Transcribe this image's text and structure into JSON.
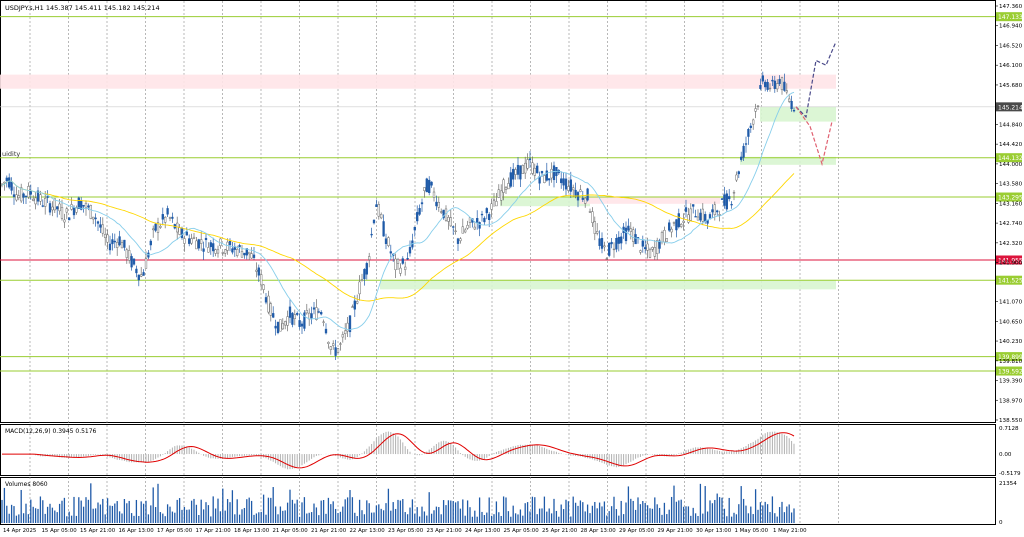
{
  "window": {
    "symbol_title": "USDJPY.s,H1",
    "ohlc_text": "145.387 145.411 145.182 145.214",
    "liquidity_label": "uidity"
  },
  "price_axis": {
    "min": 138.55,
    "max": 147.36,
    "ticks": [
      "147.360",
      "146.940",
      "146.520",
      "146.100",
      "145.680",
      "144.840",
      "144.420",
      "144.000",
      "143.580",
      "143.160",
      "142.740",
      "142.320",
      "141.900",
      "141.070",
      "140.650",
      "140.230",
      "139.810",
      "139.390",
      "138.970",
      "138.550"
    ]
  },
  "time_axis": {
    "labels": [
      "14 Apr 2025",
      "15 Apr 05:00",
      "15 Apr 21:00",
      "16 Apr 13:00",
      "17 Apr 05:00",
      "17 Apr 21:00",
      "18 Apr 13:00",
      "21 Apr 05:00",
      "21 Apr 21:00",
      "22 Apr 13:00",
      "23 Apr 05:00",
      "23 Apr 21:00",
      "24 Apr 13:00",
      "25 Apr 05:00",
      "25 Apr 21:00",
      "28 Apr 13:00",
      "29 Apr 05:00",
      "29 Apr 21:00",
      "30 Apr 13:00",
      "1 May 05:00",
      "1 May 21:00"
    ]
  },
  "levels": [
    {
      "price": 147.133,
      "label": "147.133",
      "color": "#9acd32"
    },
    {
      "price": 145.214,
      "label": "145.214",
      "color": "#4a4a4a",
      "current": true
    },
    {
      "price": 144.132,
      "label": "144.132",
      "color": "#9acd32"
    },
    {
      "price": 143.295,
      "label": "143.295",
      "color": "#9acd32"
    },
    {
      "price": 141.955,
      "label": "141.955",
      "color": "#dc143c"
    },
    {
      "price": 141.525,
      "label": "141.525",
      "color": "#9acd32"
    },
    {
      "price": 139.899,
      "label": "139.899",
      "color": "#9acd32"
    },
    {
      "price": 139.592,
      "label": "139.592",
      "color": "#9acd32"
    }
  ],
  "zones": [
    {
      "type": "supply",
      "from_price": 145.9,
      "to_price": 145.6,
      "color": "#ffe4e8"
    },
    {
      "type": "demand",
      "from_price": 145.214,
      "to_price": 144.9,
      "color": "#d8f5d0"
    },
    {
      "type": "demand",
      "from_price": 144.15,
      "to_price": 143.98,
      "color": "#d8f5d0"
    },
    {
      "type": "demand",
      "from_price": 143.3,
      "to_price": 143.1,
      "color": "#d8f5d0"
    },
    {
      "type": "demand",
      "from_price": 141.53,
      "to_price": 141.33,
      "color": "#d8f5d0"
    },
    {
      "type": "supply",
      "from_price": 143.3,
      "to_price": 143.15,
      "color": "#ffe4e8"
    }
  ],
  "macd": {
    "label": "MACD(12,26,9) 0.3945 0.5176",
    "ticks": [
      "0.7128",
      "0.00",
      "-0.5179"
    ],
    "min": -0.5179,
    "max": 0.7128
  },
  "volumes": {
    "label": "Volumes 8060",
    "ticks": [
      "21354",
      "0"
    ],
    "max": 21354
  },
  "colors": {
    "bull": "#1e5aa8",
    "bear": "#6b6b6b",
    "ma_fast": "#87ceeb",
    "ma_slow": "#ffd700",
    "macd_signal": "#e00000",
    "macd_hist": "#b0b0b0",
    "volume": "#1e5aa8",
    "grid": "#8a8a8a",
    "projection_up": "#4a4a8a",
    "projection_down": "#e06070"
  },
  "chart_data": {
    "type": "candlestick",
    "symbol": "USDJPY.s",
    "timeframe": "H1",
    "last_price": 145.214,
    "close_path": [
      [
        0,
        143.5
      ],
      [
        8,
        143.7
      ],
      [
        18,
        143.3
      ],
      [
        30,
        143.4
      ],
      [
        42,
        143.2
      ],
      [
        55,
        143.1
      ],
      [
        66,
        142.9
      ],
      [
        80,
        143.2
      ],
      [
        95,
        142.9
      ],
      [
        108,
        142.3
      ],
      [
        120,
        142.4
      ],
      [
        132,
        141.9
      ],
      [
        142,
        141.6
      ],
      [
        155,
        142.6
      ],
      [
        168,
        142.9
      ],
      [
        180,
        142.5
      ],
      [
        192,
        142.4
      ],
      [
        205,
        142.3
      ],
      [
        220,
        142.25
      ],
      [
        235,
        142.2
      ],
      [
        250,
        142.1
      ],
      [
        262,
        141.5
      ],
      [
        270,
        140.9
      ],
      [
        280,
        140.5
      ],
      [
        290,
        140.8
      ],
      [
        300,
        140.6
      ],
      [
        312,
        140.8
      ],
      [
        322,
        140.9
      ],
      [
        332,
        140.0
      ],
      [
        340,
        140.1
      ],
      [
        350,
        140.6
      ],
      [
        360,
        141.4
      ],
      [
        368,
        141.9
      ],
      [
        376,
        143.2
      ],
      [
        385,
        142.5
      ],
      [
        396,
        141.8
      ],
      [
        408,
        141.9
      ],
      [
        418,
        142.9
      ],
      [
        428,
        143.6
      ],
      [
        438,
        143.2
      ],
      [
        448,
        142.8
      ],
      [
        458,
        142.4
      ],
      [
        470,
        142.7
      ],
      [
        482,
        142.8
      ],
      [
        494,
        143.1
      ],
      [
        506,
        143.6
      ],
      [
        518,
        143.8
      ],
      [
        530,
        144.0
      ],
      [
        542,
        143.7
      ],
      [
        554,
        143.8
      ],
      [
        566,
        143.6
      ],
      [
        578,
        143.4
      ],
      [
        588,
        143.3
      ],
      [
        596,
        142.5
      ],
      [
        606,
        142.1
      ],
      [
        618,
        142.4
      ],
      [
        630,
        142.6
      ],
      [
        642,
        142.2
      ],
      [
        652,
        142.1
      ],
      [
        662,
        142.4
      ],
      [
        674,
        142.7
      ],
      [
        686,
        142.9
      ],
      [
        696,
        143.0
      ],
      [
        708,
        142.8
      ],
      [
        720,
        143.1
      ],
      [
        732,
        143.3
      ],
      [
        740,
        144.0
      ],
      [
        748,
        144.6
      ],
      [
        756,
        145.2
      ],
      [
        764,
        145.8
      ],
      [
        772,
        145.6
      ],
      [
        780,
        145.8
      ],
      [
        788,
        145.4
      ],
      [
        796,
        145.214
      ]
    ],
    "projection_up": [
      [
        796,
        145.214
      ],
      [
        806,
        145.0
      ],
      [
        816,
        146.2
      ],
      [
        826,
        146.1
      ],
      [
        836,
        146.6
      ]
    ],
    "projection_down": [
      [
        796,
        145.214
      ],
      [
        810,
        144.8
      ],
      [
        822,
        144.0
      ],
      [
        832,
        144.9
      ]
    ]
  }
}
